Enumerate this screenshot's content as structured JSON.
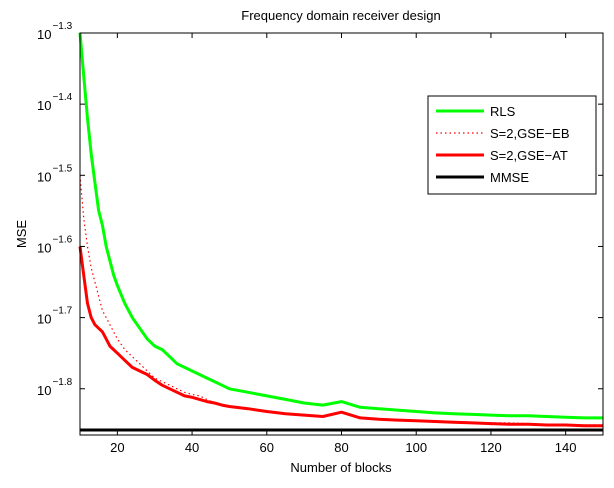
{
  "chart_data": {
    "type": "line",
    "title": "Frequency domain receiver design",
    "xlabel": "Number of blocks",
    "ylabel": "MSE",
    "xlim": [
      10,
      150
    ],
    "ylim_log10": [
      -1.865,
      -1.3
    ],
    "yscale": "log",
    "grid": false,
    "legend_placement": "right",
    "x_ticks": [
      20,
      40,
      60,
      80,
      100,
      120,
      140
    ],
    "x_tick_labels": [
      "20",
      "40",
      "60",
      "80",
      "100",
      "120",
      "140"
    ],
    "y_ticks_log10": [
      -1.3,
      -1.4,
      -1.5,
      -1.6,
      -1.7,
      -1.8
    ],
    "y_tick_base": "10",
    "y_tick_exponents": [
      "−1.3",
      "−1.4",
      "−1.5",
      "−1.6",
      "−1.7",
      "−1.8"
    ],
    "series": [
      {
        "name": "RLS",
        "color": "#00ff00",
        "style": "solid",
        "x": [
          10,
          11,
          12,
          13,
          14,
          15,
          16,
          17,
          18,
          19,
          20,
          22,
          24,
          26,
          28,
          30,
          32,
          34,
          36,
          38,
          40,
          42,
          44,
          46,
          48,
          50,
          55,
          60,
          65,
          70,
          75,
          80,
          85,
          90,
          95,
          100,
          105,
          110,
          115,
          120,
          125,
          130,
          135,
          140,
          145,
          150
        ],
        "log10_mse": [
          -1.3,
          -1.36,
          -1.42,
          -1.47,
          -1.51,
          -1.55,
          -1.57,
          -1.6,
          -1.62,
          -1.64,
          -1.655,
          -1.68,
          -1.7,
          -1.715,
          -1.73,
          -1.74,
          -1.745,
          -1.755,
          -1.765,
          -1.77,
          -1.775,
          -1.78,
          -1.785,
          -1.79,
          -1.795,
          -1.8,
          -1.805,
          -1.81,
          -1.815,
          -1.82,
          -1.823,
          -1.818,
          -1.826,
          -1.828,
          -1.83,
          -1.832,
          -1.834,
          -1.835,
          -1.836,
          -1.837,
          -1.838,
          -1.838,
          -1.839,
          -1.84,
          -1.841,
          -1.841
        ]
      },
      {
        "name": "S=2,GSE−EB",
        "color": "#ff0000",
        "style": "dotted",
        "x": [
          10,
          11,
          12,
          13,
          14,
          15,
          16,
          17,
          18,
          19,
          20,
          22,
          24,
          26,
          28,
          30,
          32,
          34,
          36,
          38,
          40,
          42,
          44,
          46,
          48,
          50,
          55,
          60,
          65,
          70,
          75,
          80,
          85,
          90,
          95,
          100,
          105,
          110,
          115,
          120,
          125,
          130,
          135,
          140,
          145,
          150
        ],
        "log10_mse": [
          -1.5,
          -1.56,
          -1.6,
          -1.63,
          -1.65,
          -1.67,
          -1.69,
          -1.7,
          -1.71,
          -1.72,
          -1.73,
          -1.745,
          -1.755,
          -1.765,
          -1.775,
          -1.785,
          -1.79,
          -1.795,
          -1.8,
          -1.805,
          -1.808,
          -1.81,
          -1.815,
          -1.82,
          -1.822,
          -1.825,
          -1.828,
          -1.832,
          -1.835,
          -1.836,
          -1.838,
          -1.832,
          -1.84,
          -1.842,
          -1.843,
          -1.844,
          -1.845,
          -1.846,
          -1.847,
          -1.848,
          -1.848,
          -1.849,
          -1.85,
          -1.85,
          -1.851,
          -1.851
        ]
      },
      {
        "name": "S=2,GSE−AT",
        "color": "#ff0000",
        "style": "solid",
        "x": [
          10,
          11,
          12,
          13,
          14,
          15,
          16,
          17,
          18,
          19,
          20,
          22,
          24,
          26,
          28,
          30,
          32,
          34,
          36,
          38,
          40,
          42,
          44,
          46,
          48,
          50,
          55,
          60,
          65,
          70,
          75,
          80,
          85,
          90,
          95,
          100,
          105,
          110,
          115,
          120,
          125,
          130,
          135,
          140,
          145,
          150
        ],
        "log10_mse": [
          -1.6,
          -1.64,
          -1.68,
          -1.7,
          -1.71,
          -1.715,
          -1.72,
          -1.73,
          -1.74,
          -1.745,
          -1.75,
          -1.76,
          -1.77,
          -1.775,
          -1.78,
          -1.788,
          -1.795,
          -1.8,
          -1.805,
          -1.81,
          -1.812,
          -1.815,
          -1.818,
          -1.82,
          -1.823,
          -1.825,
          -1.828,
          -1.832,
          -1.835,
          -1.837,
          -1.839,
          -1.833,
          -1.841,
          -1.843,
          -1.844,
          -1.845,
          -1.846,
          -1.847,
          -1.848,
          -1.849,
          -1.85,
          -1.85,
          -1.851,
          -1.851,
          -1.852,
          -1.852
        ]
      },
      {
        "name": "MMSE",
        "color": "#000000",
        "style": "solid",
        "x": [
          10,
          150
        ],
        "log10_mse": [
          -1.858,
          -1.858
        ]
      }
    ]
  }
}
